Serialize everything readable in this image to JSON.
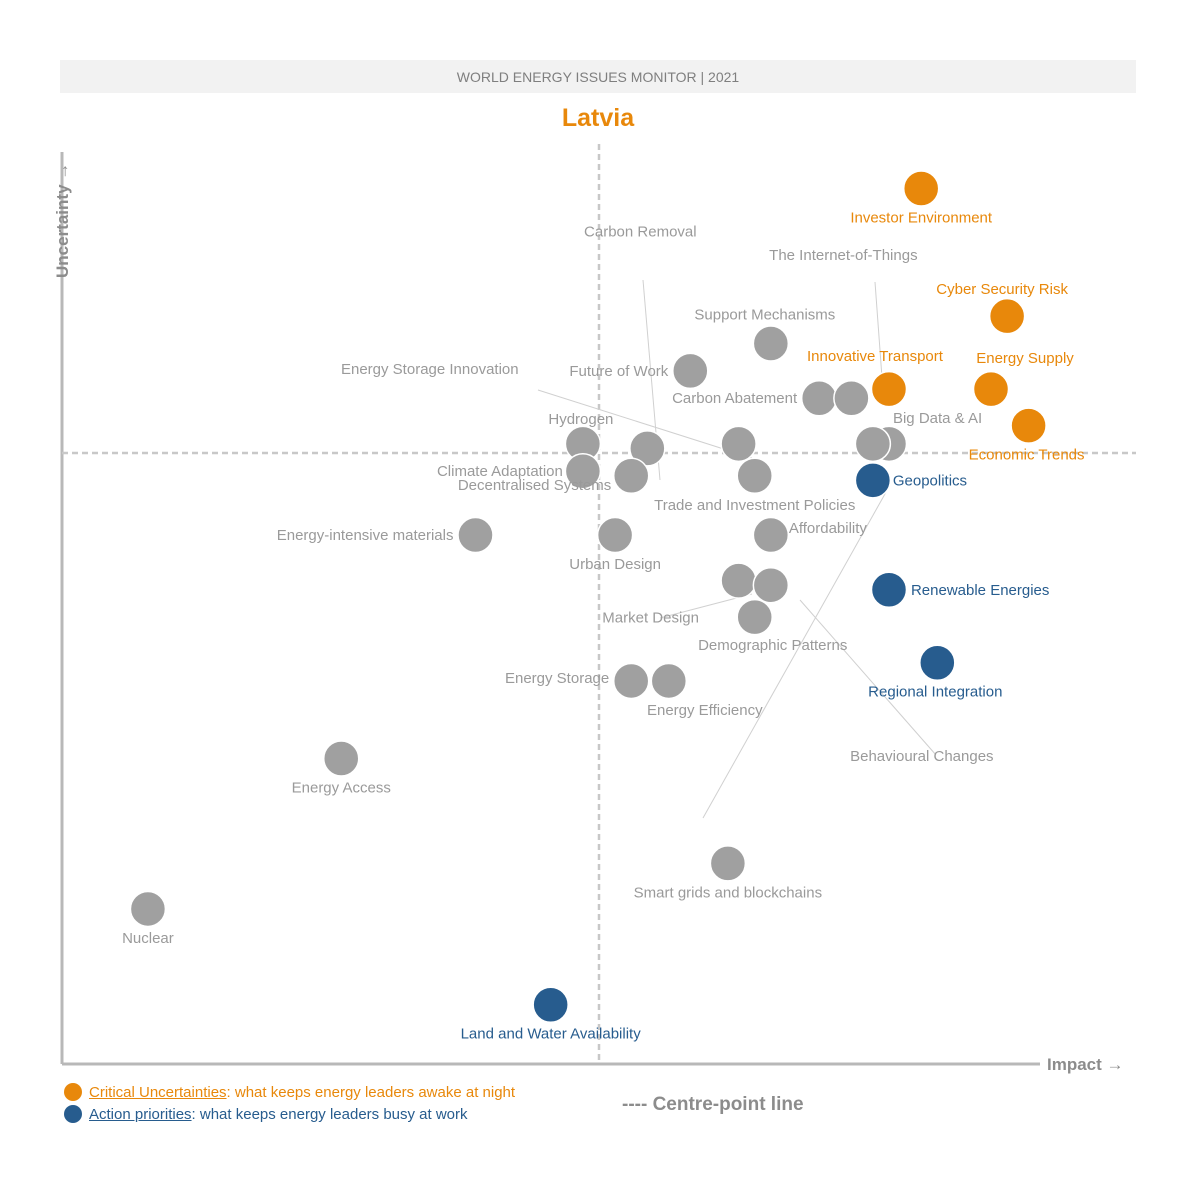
{
  "chart_data": {
    "type": "scatter",
    "header": "WORLD ENERGY ISSUES MONITOR | 2021",
    "title": "Latvia",
    "xlabel": "Impact →",
    "ylabel": "Uncertainty →",
    "xlim": [
      0,
      10
    ],
    "ylim": [
      0,
      10
    ],
    "centre_point": {
      "x": 5.0,
      "y": 6.7
    },
    "grid": false,
    "legend_position": "bottom-left",
    "colors": {
      "critical": "#E8880B",
      "action": "#275C8E",
      "other": "#A0A0A0",
      "axis": "#B8B8B8",
      "header_bg": "#F2F2F2"
    },
    "points": [
      {
        "label": "Investor Environment",
        "x": 8.0,
        "y": 9.6,
        "category": "critical"
      },
      {
        "label": "Cyber Security Risk",
        "x": 8.8,
        "y": 8.2,
        "category": "critical"
      },
      {
        "label": "Energy Supply",
        "x": 8.65,
        "y": 7.4,
        "category": "critical"
      },
      {
        "label": "Innovative Transport",
        "x": 7.7,
        "y": 7.4,
        "category": "critical"
      },
      {
        "label": "Economic Trends",
        "x": 9.0,
        "y": 7.0,
        "category": "critical"
      },
      {
        "label": "Geopolitics",
        "x": 7.55,
        "y": 6.4,
        "category": "action"
      },
      {
        "label": "Renewable Energies",
        "x": 7.7,
        "y": 5.2,
        "category": "action"
      },
      {
        "label": "Regional Integration",
        "x": 8.15,
        "y": 4.4,
        "category": "action"
      },
      {
        "label": "Land and Water Availability",
        "x": 4.55,
        "y": 0.65,
        "category": "action"
      },
      {
        "label": "Support Mechanisms",
        "x": 6.6,
        "y": 7.9,
        "category": "other"
      },
      {
        "label": "Future of Work",
        "x": 5.85,
        "y": 7.6,
        "category": "other"
      },
      {
        "label": "Carbon Abatement",
        "x": 7.05,
        "y": 7.3,
        "category": "other"
      },
      {
        "label": "The Internet-of-Things",
        "x": 7.35,
        "y": 7.3,
        "category": "other"
      },
      {
        "label": "Big Data & AI",
        "x": 7.7,
        "y": 6.8,
        "category": "other"
      },
      {
        "label": "",
        "x": 7.55,
        "y": 6.8,
        "category": "other"
      },
      {
        "label": "Energy Storage Innovation",
        "x": 6.3,
        "y": 6.8,
        "category": "other"
      },
      {
        "label": "Hydrogen",
        "x": 4.85,
        "y": 6.8,
        "category": "other"
      },
      {
        "label": "Climate Adaptation",
        "x": 4.85,
        "y": 6.5,
        "category": "other"
      },
      {
        "label": "Carbon Removal",
        "x": 5.45,
        "y": 6.75,
        "category": "other"
      },
      {
        "label": "Decentralised Systems",
        "x": 5.3,
        "y": 6.45,
        "category": "other"
      },
      {
        "label": "Trade and Investment Policies",
        "x": 6.45,
        "y": 6.45,
        "category": "other"
      },
      {
        "label": "Energy-intensive materials",
        "x": 3.85,
        "y": 5.8,
        "category": "other"
      },
      {
        "label": "Urban Design",
        "x": 5.15,
        "y": 5.8,
        "category": "other"
      },
      {
        "label": "Affordability",
        "x": 6.6,
        "y": 5.8,
        "category": "other"
      },
      {
        "label": "Market Design",
        "x": 6.3,
        "y": 5.3,
        "category": "other"
      },
      {
        "label": "Behavioural Changes",
        "x": 6.6,
        "y": 5.25,
        "category": "other"
      },
      {
        "label": "Demographic Patterns",
        "x": 6.45,
        "y": 4.9,
        "category": "other"
      },
      {
        "label": "Energy Storage",
        "x": 5.3,
        "y": 4.2,
        "category": "other"
      },
      {
        "label": "Energy Efficiency",
        "x": 5.65,
        "y": 4.2,
        "category": "other"
      },
      {
        "label": "Energy Access",
        "x": 2.6,
        "y": 3.35,
        "category": "other"
      },
      {
        "label": "Smart grids and blockchains",
        "x": 6.2,
        "y": 2.2,
        "category": "other"
      },
      {
        "label": "Nuclear",
        "x": 0.8,
        "y": 1.7,
        "category": "other"
      }
    ]
  },
  "legend": {
    "critical_key": "Critical Uncertainties",
    "critical_text": ": what keeps energy leaders awake at night",
    "action_key": "Action priorities",
    "action_text": ": what keeps energy leaders busy at work",
    "centre_line": "---- Centre-point line"
  }
}
